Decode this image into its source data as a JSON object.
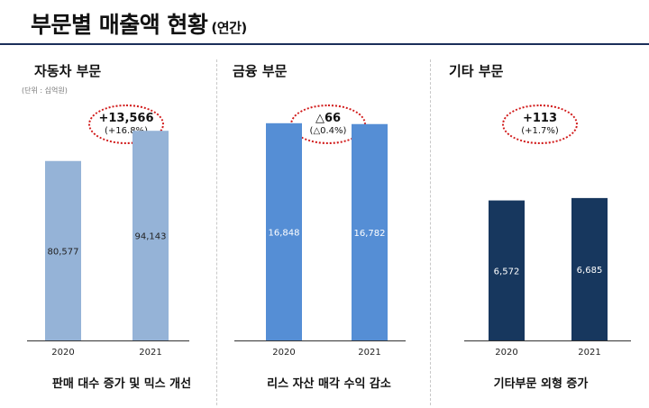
{
  "title": "부문별 매출액 현황",
  "title_suffix": "(연간)",
  "unit_label": "(단위 : 십억원)",
  "colors": {
    "auto": "#95b3d7",
    "finance": "#558ed5",
    "other": "#17375e",
    "ellipse": "#d11a1a"
  },
  "chart_data": [
    {
      "type": "bar",
      "title": "자동차 부문",
      "categories": [
        "2020",
        "2021"
      ],
      "values": [
        80577,
        94143
      ],
      "value_labels": [
        "80,577",
        "94,143"
      ],
      "ylim": [
        0,
        110000
      ],
      "color": "#95b3d7",
      "change": "+13,566",
      "change_pct": "(+16.8%)",
      "caption": "판매 대수 증가 및 믹스 개선"
    },
    {
      "type": "bar",
      "title": "금융 부문",
      "categories": [
        "2020",
        "2021"
      ],
      "values": [
        16848,
        16782
      ],
      "value_labels": [
        "16,848",
        "16,782"
      ],
      "ylim": [
        0,
        19000
      ],
      "color": "#558ed5",
      "change": "△66",
      "change_pct": "(△0.4%)",
      "caption": "리스 자산 매각 수익 감소"
    },
    {
      "type": "bar",
      "title": "기타 부문",
      "categories": [
        "2020",
        "2021"
      ],
      "values": [
        6572,
        6685
      ],
      "value_labels": [
        "6,572",
        "6,685"
      ],
      "ylim": [
        0,
        11500
      ],
      "color": "#17375e",
      "change": "+113",
      "change_pct": "(+1.7%)",
      "caption": "기타부문 외형 증가"
    }
  ]
}
